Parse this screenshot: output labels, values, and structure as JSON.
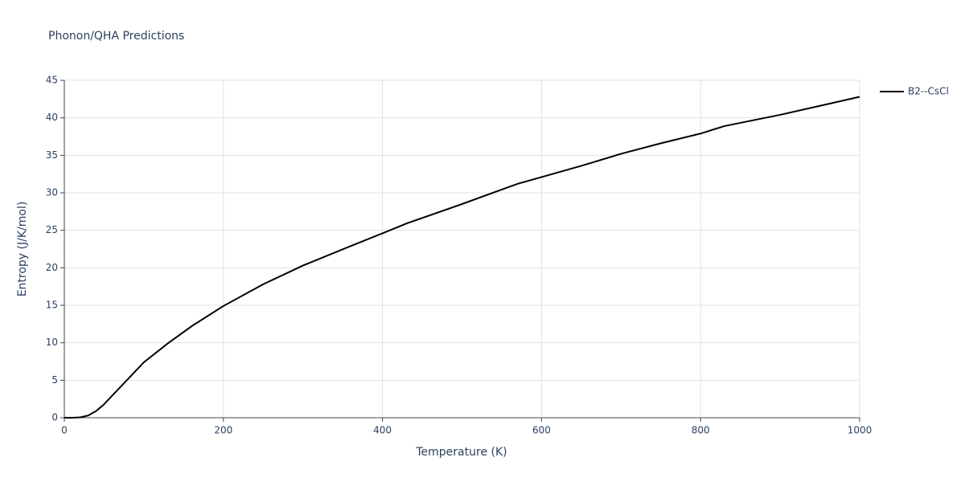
{
  "chart_data": {
    "type": "line",
    "title": "Phonon/QHA Predictions",
    "x_label": "Temperature (K)",
    "y_label": "Entropy (J/K/mol)",
    "x": [
      0,
      10,
      20,
      30,
      40,
      49,
      100,
      130,
      160,
      200,
      250,
      300,
      360,
      400,
      430,
      500,
      570,
      600,
      650,
      700,
      750,
      800,
      830,
      900,
      1000
    ],
    "series": [
      {
        "name": "B2--CsCl",
        "color": "#000000",
        "values": [
          0,
          0,
          0.05,
          0.3,
          0.9,
          1.7,
          7.4,
          9.9,
          12.2,
          14.9,
          17.8,
          20.3,
          22.9,
          24.6,
          25.9,
          28.5,
          31.2,
          32.1,
          33.6,
          35.2,
          36.6,
          37.9,
          38.9,
          40.4,
          42.8
        ]
      }
    ],
    "xlim": [
      0,
      1000
    ],
    "xticks": [
      0,
      200,
      400,
      600,
      800,
      1000
    ],
    "ylim": [
      0,
      45
    ],
    "yticks": [
      0,
      5,
      10,
      15,
      20,
      25,
      30,
      35,
      40,
      45
    ],
    "grid": true,
    "legend": "top-right"
  }
}
